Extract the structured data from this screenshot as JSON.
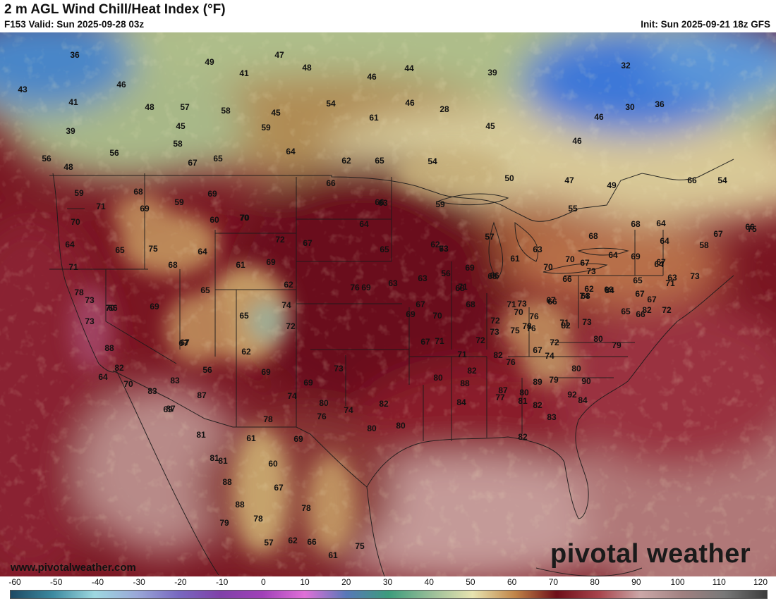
{
  "header": {
    "title": "2 m AGL Wind Chill/Heat Index (°F)",
    "valid": "F153 Valid: Sun 2025-09-28 03z",
    "init": "Init: Sun 2025-09-21 18z GFS"
  },
  "watermark": "www.pivotalweather.com",
  "logo": "pivotal weather",
  "colorbar": {
    "ticks": [
      "-60",
      "-50",
      "-40",
      "-30",
      "-20",
      "-10",
      "0",
      "10",
      "20",
      "30",
      "40",
      "50",
      "60",
      "70",
      "80",
      "90",
      "100",
      "110",
      "120"
    ],
    "colors": [
      "#1e4a64",
      "#3c8aa0",
      "#9ed8e0",
      "#9aa8d8",
      "#7868c0",
      "#8040a8",
      "#a040b8",
      "#e070d8",
      "#5878b8",
      "#3c9c7c",
      "#98be98",
      "#e8e4b0",
      "#c08448",
      "#6e0f19",
      "#a8444c",
      "#cca8a8",
      "#a08080",
      "#787878",
      "#3c3c3c"
    ]
  },
  "map_labels": [
    "36",
    "47",
    "49",
    "48",
    "44",
    "39",
    "43",
    "46",
    "46",
    "41",
    "41",
    "48",
    "57",
    "58",
    "54",
    "46",
    "45",
    "39",
    "45",
    "59",
    "61",
    "45",
    "28",
    "32",
    "30",
    "36",
    "46",
    "46",
    "56",
    "58",
    "64",
    "56",
    "67",
    "65",
    "62",
    "65",
    "54",
    "50",
    "47",
    "49",
    "66",
    "54",
    "48",
    "59",
    "68",
    "71",
    "69",
    "69",
    "66",
    "70",
    "64",
    "59",
    "59",
    "70",
    "60",
    "70",
    "65",
    "75",
    "68",
    "64",
    "72",
    "71",
    "67",
    "69",
    "61",
    "62",
    "73",
    "70",
    "69",
    "65",
    "78",
    "66",
    "67",
    "73",
    "74",
    "65",
    "72",
    "69",
    "88",
    "67",
    "82",
    "64",
    "70",
    "83",
    "83",
    "69",
    "87",
    "56",
    "87",
    "62",
    "69",
    "80",
    "74",
    "73",
    "74",
    "82",
    "81",
    "78",
    "76",
    "80",
    "81",
    "61",
    "69",
    "88",
    "60",
    "81",
    "67",
    "88",
    "78",
    "78",
    "79",
    "57",
    "62",
    "66",
    "61",
    "75",
    "63",
    "62",
    "55",
    "57",
    "61",
    "63",
    "73",
    "68",
    "68",
    "64",
    "67",
    "66",
    "64",
    "67",
    "69",
    "64",
    "56",
    "63",
    "65",
    "64",
    "63",
    "66",
    "67",
    "71",
    "69",
    "68",
    "70",
    "66",
    "70",
    "67",
    "73",
    "69",
    "65",
    "68",
    "62",
    "66",
    "63",
    "58",
    "64",
    "73",
    "75",
    "71",
    "67",
    "66",
    "67",
    "72",
    "74",
    "67",
    "65",
    "82",
    "84",
    "69",
    "76",
    "63",
    "69",
    "70",
    "68",
    "68",
    "72",
    "70",
    "66",
    "71",
    "67",
    "71",
    "71",
    "72",
    "71",
    "73",
    "76",
    "75",
    "73",
    "76",
    "67",
    "74",
    "73",
    "72",
    "78",
    "82",
    "80",
    "79",
    "82",
    "82",
    "76",
    "80",
    "79",
    "90",
    "92",
    "89",
    "88",
    "87",
    "80",
    "77",
    "81",
    "82",
    "83",
    "84",
    "80",
    "80",
    "84",
    "82"
  ]
}
